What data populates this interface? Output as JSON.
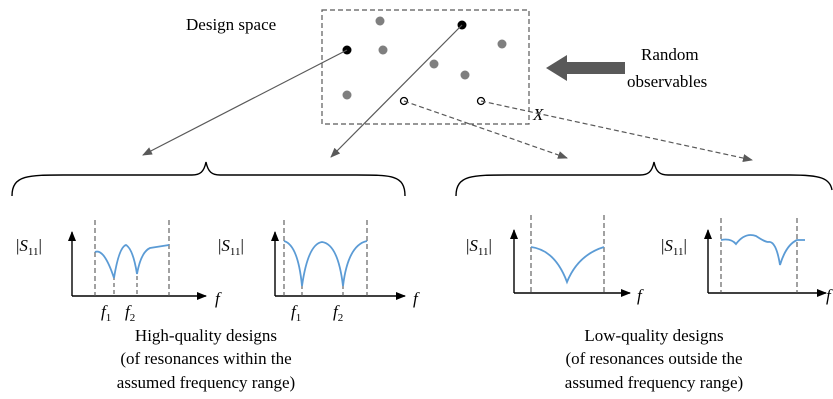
{
  "design_space": {
    "label": "Design space",
    "x_label": "X"
  },
  "random_observables": {
    "line1": "Random",
    "line2": "observables"
  },
  "high_quality": {
    "line1": "High-quality designs",
    "line2": "(of resonances within the",
    "line3": "assumed frequency range)"
  },
  "low_quality": {
    "line1": "Low-quality designs",
    "line2": "(of resonances outside the",
    "line3": "assumed frequency range)"
  },
  "plot_labels": {
    "y_prefix": "|",
    "y_main": "S",
    "y_sub": "11",
    "y_suffix": "|",
    "x_axis": "f",
    "f_main": "f",
    "f1_sub": "1",
    "f2_sub": "2"
  },
  "colors": {
    "curve": "#5b9bd5",
    "gray_dot": "#7f7f7f",
    "arrow": "#595959",
    "line": "#595959"
  }
}
